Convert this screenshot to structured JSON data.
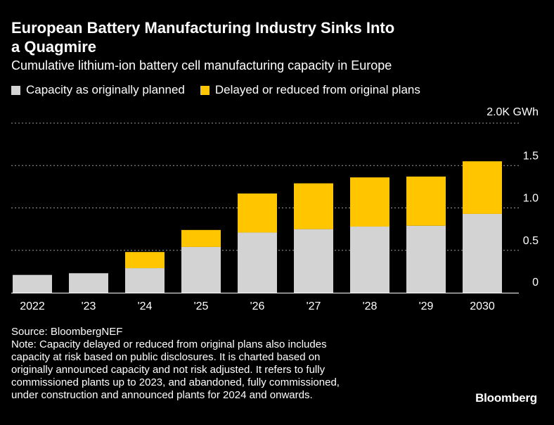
{
  "chart_data": {
    "type": "bar",
    "stacked": true,
    "title_lines": [
      "European Battery Manufacturing Industry Sinks Into",
      "a Quagmire"
    ],
    "subtitle": "Cumulative lithium-ion battery cell manufacturing capacity in Europe",
    "categories": [
      "2022",
      "'23",
      "'24",
      "'25",
      "'26",
      "'27",
      "'28",
      "'29",
      "2030"
    ],
    "series": [
      {
        "name": "Capacity as originally planned",
        "color": "#d3d3d3",
        "values": [
          0.21,
          0.23,
          0.29,
          0.54,
          0.71,
          0.75,
          0.78,
          0.79,
          0.93
        ]
      },
      {
        "name": "Delayed or reduced from original plans",
        "color": "#ffc600",
        "values": [
          0.0,
          0.0,
          0.19,
          0.2,
          0.46,
          0.54,
          0.58,
          0.58,
          0.62
        ]
      }
    ],
    "y_ticks": [
      {
        "value": 0,
        "label": "0"
      },
      {
        "value": 0.5,
        "label": "0.5"
      },
      {
        "value": 1.0,
        "label": "1.0"
      },
      {
        "value": 1.5,
        "label": "1.5"
      },
      {
        "value": 2.0,
        "label": "2.0K GWh"
      }
    ],
    "ylim": [
      0,
      2.0
    ],
    "xlabel": "",
    "ylabel": "GWh",
    "grid": true,
    "legend_position": "top-left"
  },
  "footer": {
    "source": "Source: BloombergNEF",
    "note_lines": [
      "Note: Capacity delayed or reduced from original plans also includes",
      "capacity at risk based on public disclosures. It is charted based on",
      "originally announced capacity and not risk adjusted. It refers to fully",
      "commissioned plants up to 2023, and abandoned, fully commissioned,",
      "under construction and announced plants for 2024 and onwards."
    ]
  },
  "brand": "Bloomberg",
  "colors": {
    "background": "#000000",
    "text": "#ffffff",
    "gridline": "#9a9a9a",
    "axis": "#ffffff"
  }
}
